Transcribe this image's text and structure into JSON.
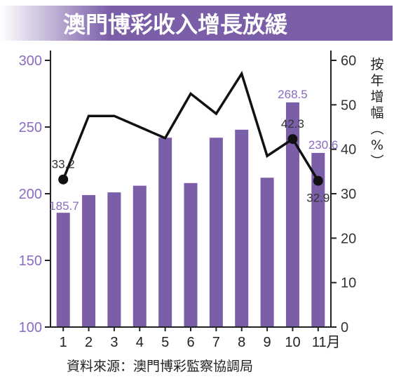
{
  "chart_data": {
    "type": "bar+line",
    "title": "澳門博彩收入增長放緩",
    "categories": [
      "1",
      "2",
      "3",
      "4",
      "5",
      "6",
      "7",
      "8",
      "9",
      "10",
      "11月"
    ],
    "series": [
      {
        "type": "bar",
        "axis": "left",
        "values": [
          185.7,
          199,
          201,
          206,
          242,
          208,
          242,
          248,
          212,
          268.5,
          230.6
        ]
      },
      {
        "type": "line",
        "axis": "right",
        "values": [
          33.2,
          47.5,
          47.5,
          45,
          42.5,
          52.5,
          48,
          57,
          38.5,
          42.3,
          32.9
        ]
      }
    ],
    "bar_labels": [
      {
        "index": 0,
        "text": "185.7"
      },
      {
        "index": 9,
        "text": "268.5"
      },
      {
        "index": 10,
        "text": "230.6"
      }
    ],
    "line_labels": [
      {
        "index": 0,
        "text": "33.2"
      },
      {
        "index": 9,
        "text": "42.3"
      },
      {
        "index": 10,
        "text": "32.9"
      }
    ],
    "highlighted_points": [
      0,
      9,
      10
    ],
    "y_left": {
      "range": [
        100,
        300
      ],
      "ticks": [
        "100",
        "150",
        "200",
        "250",
        "300"
      ]
    },
    "y_right": {
      "range": [
        0,
        60
      ],
      "ticks": [
        "0",
        "10",
        "20",
        "30",
        "40",
        "50",
        "60"
      ],
      "label": "按年增幅（%）"
    },
    "grid": false,
    "source": "資料來源：澳門博彩監察協調局",
    "colors": {
      "title_band": "#7b5ea8",
      "title_text": "#ffffff",
      "bar": "#7b5ea8",
      "line": "#111111",
      "left_ticks": "#8a6bc0"
    }
  }
}
